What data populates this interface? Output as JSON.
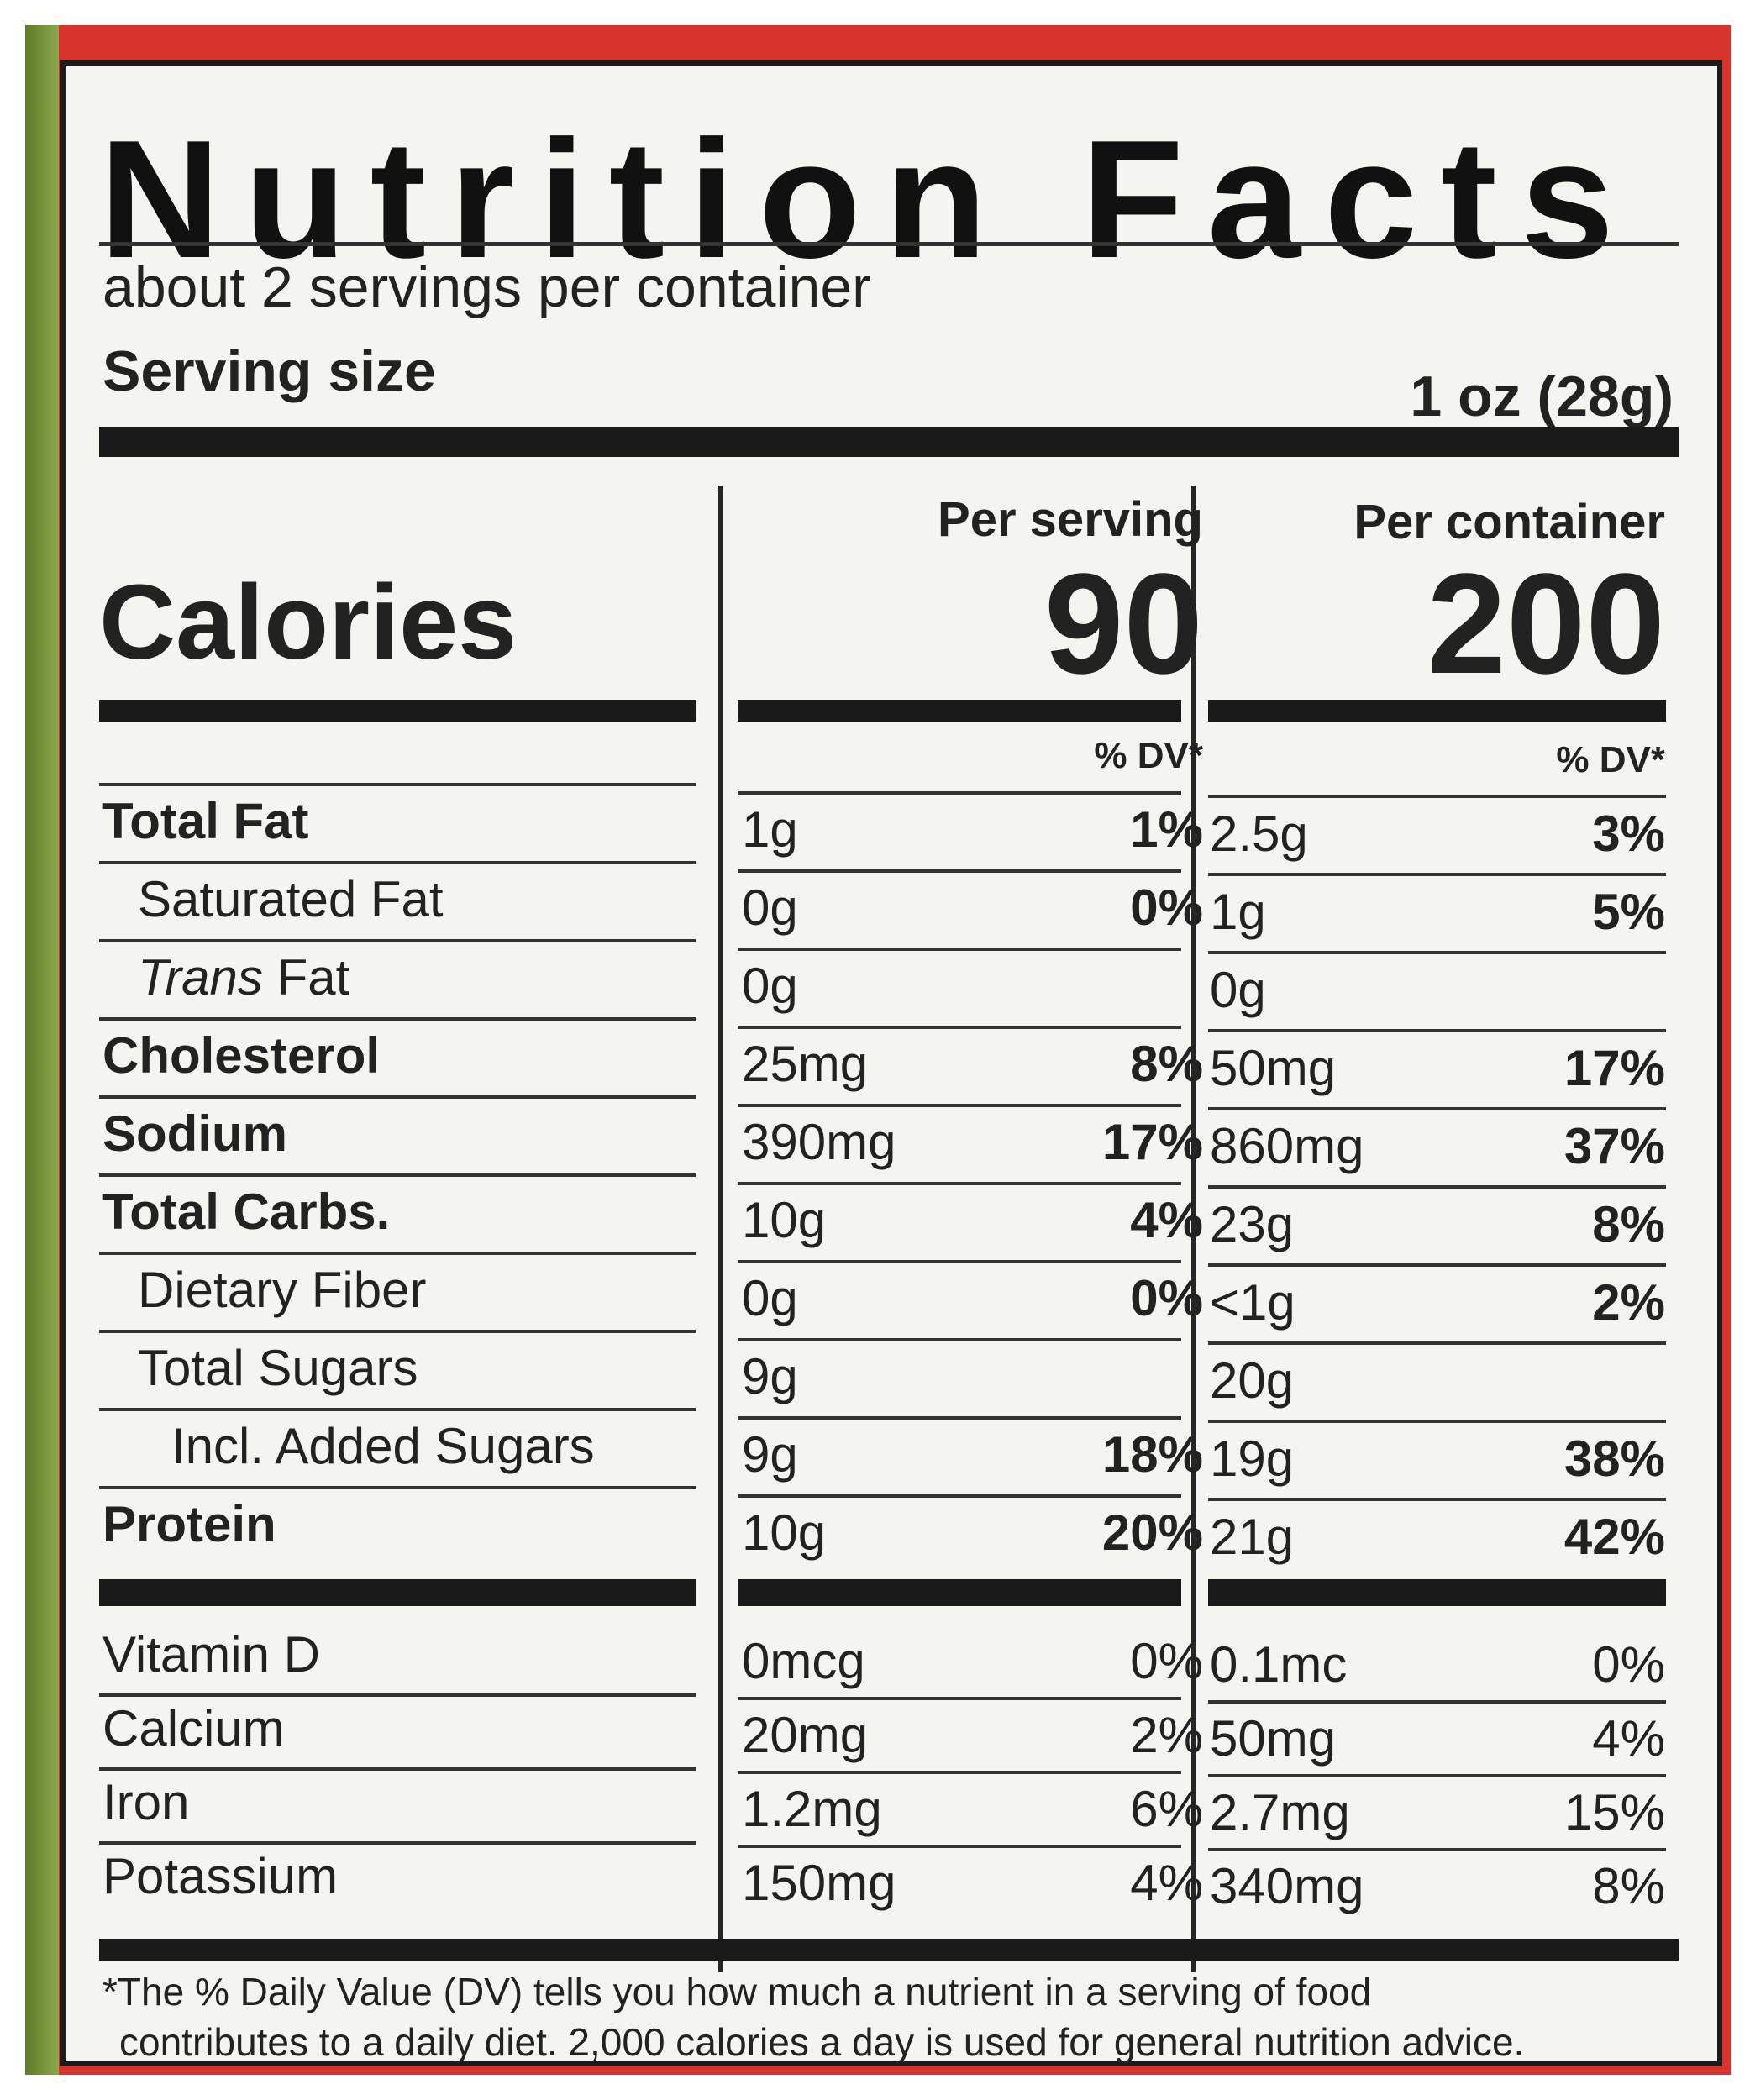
{
  "title": "Nutrition Facts",
  "servings_per_container": "about 2 servings per container",
  "serving_size_label": "Serving size",
  "serving_size_value": "1 oz (28g)",
  "columns": {
    "per_serving": "Per serving",
    "per_container": "Per container"
  },
  "calories": {
    "label": "Calories",
    "per_serving": "90",
    "per_container": "200"
  },
  "dv_header": "% DV*",
  "nutrients": [
    {
      "name": "Total Fat",
      "serving_amount": "1g",
      "serving_dv": "1%",
      "container_amount": "2.5g",
      "container_dv": "3%"
    },
    {
      "name": "Saturated Fat",
      "serving_amount": "0g",
      "serving_dv": "0%",
      "container_amount": "1g",
      "container_dv": "5%"
    },
    {
      "name_italic": "Trans",
      "name": " Fat",
      "serving_amount": "0g",
      "serving_dv": "",
      "container_amount": "0g",
      "container_dv": ""
    },
    {
      "name": "Cholesterol",
      "serving_amount": "25mg",
      "serving_dv": "8%",
      "container_amount": "50mg",
      "container_dv": "17%"
    },
    {
      "name": "Sodium",
      "serving_amount": "390mg",
      "serving_dv": "17%",
      "container_amount": "860mg",
      "container_dv": "37%"
    },
    {
      "name": "Total Carbs.",
      "serving_amount": "10g",
      "serving_dv": "4%",
      "container_amount": "23g",
      "container_dv": "8%"
    },
    {
      "name": "Dietary Fiber",
      "serving_amount": "0g",
      "serving_dv": "0%",
      "container_amount": "<1g",
      "container_dv": "2%"
    },
    {
      "name": "Total Sugars",
      "serving_amount": "9g",
      "serving_dv": "",
      "container_amount": "20g",
      "container_dv": ""
    },
    {
      "name": "Incl. Added Sugars",
      "serving_amount": "9g",
      "serving_dv": "18%",
      "container_amount": "19g",
      "container_dv": "38%"
    },
    {
      "name": "Protein",
      "serving_amount": "10g",
      "serving_dv": "20%",
      "container_amount": "21g",
      "container_dv": "42%"
    }
  ],
  "vitamins": [
    {
      "name": "Vitamin D",
      "serving_amount": "0mcg",
      "serving_dv": "0%",
      "container_amount": "0.1mc",
      "container_dv": "0%"
    },
    {
      "name": "Calcium",
      "serving_amount": "20mg",
      "serving_dv": "2%",
      "container_amount": "50mg",
      "container_dv": "4%"
    },
    {
      "name": "Iron",
      "serving_amount": "1.2mg",
      "serving_dv": "6%",
      "container_amount": "2.7mg",
      "container_dv": "15%"
    },
    {
      "name": "Potassium",
      "serving_amount": "150mg",
      "serving_dv": "4%",
      "container_amount": "340mg",
      "container_dv": "8%"
    }
  ],
  "footnote_line1": "*The % Daily Value (DV) tells you how much a nutrient in a serving of food",
  "footnote_line2": "contributes to a daily diet. 2,000 calories a day is used for general nutrition advice."
}
